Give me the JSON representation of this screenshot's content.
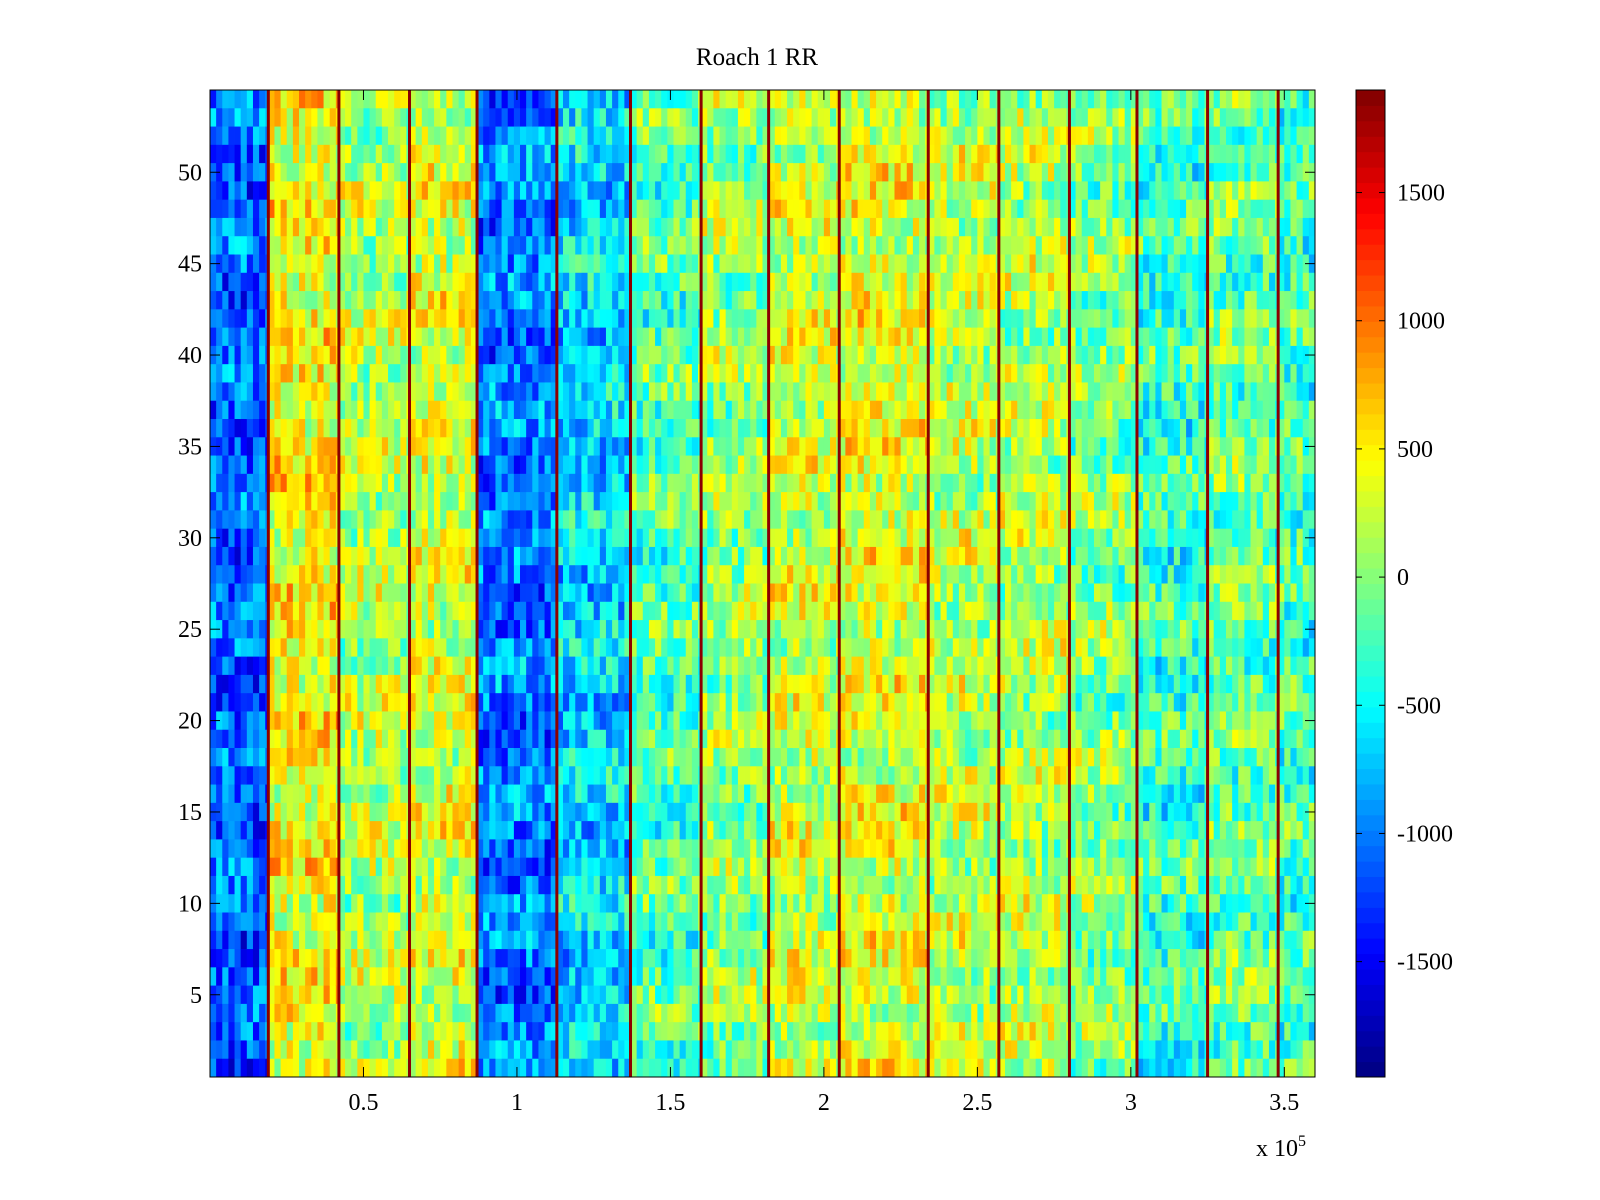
{
  "chart_data": {
    "type": "heatmap",
    "title": "Roach 1 RR",
    "xlabel": "",
    "ylabel": "",
    "x_multiplier_text": "x 10",
    "x_multiplier_exponent": "5",
    "xlim": [
      0,
      360000
    ],
    "ylim": [
      0.5,
      54.5
    ],
    "x_ticks": [
      {
        "value": 50000,
        "label": "0.5"
      },
      {
        "value": 100000,
        "label": "1"
      },
      {
        "value": 150000,
        "label": "1.5"
      },
      {
        "value": 200000,
        "label": "2"
      },
      {
        "value": 250000,
        "label": "2.5"
      },
      {
        "value": 300000,
        "label": "3"
      },
      {
        "value": 350000,
        "label": "3.5"
      }
    ],
    "y_ticks": [
      {
        "value": 5,
        "label": "5"
      },
      {
        "value": 10,
        "label": "10"
      },
      {
        "value": 15,
        "label": "15"
      },
      {
        "value": 20,
        "label": "20"
      },
      {
        "value": 25,
        "label": "25"
      },
      {
        "value": 30,
        "label": "30"
      },
      {
        "value": 35,
        "label": "35"
      },
      {
        "value": 40,
        "label": "40"
      },
      {
        "value": 45,
        "label": "45"
      },
      {
        "value": 50,
        "label": "50"
      }
    ],
    "rows": 54,
    "colormap": "jet",
    "colorbar": {
      "clim": [
        -1950,
        1900
      ],
      "ticks": [
        {
          "value": -1500,
          "label": "-1500"
        },
        {
          "value": -1000,
          "label": "-1000"
        },
        {
          "value": -500,
          "label": "-500"
        },
        {
          "value": 0,
          "label": "0"
        },
        {
          "value": 500,
          "label": "500"
        },
        {
          "value": 1000,
          "label": "1000"
        },
        {
          "value": 1500,
          "label": "1500"
        }
      ]
    },
    "segments": [
      {
        "x_start": 0,
        "x_end": 19000,
        "value": -1100
      },
      {
        "x_start": 19000,
        "x_end": 42000,
        "value": 450
      },
      {
        "x_start": 42000,
        "x_end": 65000,
        "value": 150
      },
      {
        "x_start": 65000,
        "x_end": 87000,
        "value": 300
      },
      {
        "x_start": 87000,
        "x_end": 113000,
        "value": -1000
      },
      {
        "x_start": 113000,
        "x_end": 137000,
        "value": -650
      },
      {
        "x_start": 137000,
        "x_end": 160000,
        "value": -200
      },
      {
        "x_start": 160000,
        "x_end": 182000,
        "value": 50
      },
      {
        "x_start": 182000,
        "x_end": 205000,
        "value": 250
      },
      {
        "x_start": 205000,
        "x_end": 234000,
        "value": 350
      },
      {
        "x_start": 234000,
        "x_end": 257000,
        "value": 200
      },
      {
        "x_start": 257000,
        "x_end": 280000,
        "value": 150
      },
      {
        "x_start": 280000,
        "x_end": 302000,
        "value": 0
      },
      {
        "x_start": 302000,
        "x_end": 325000,
        "value": -300
      },
      {
        "x_start": 325000,
        "x_end": 348000,
        "value": -100
      },
      {
        "x_start": 348000,
        "x_end": 360000,
        "value": -250
      }
    ],
    "spike_lines_x": [
      19000,
      42000,
      65000,
      87000,
      113000,
      137000,
      160000,
      182000,
      205000,
      234000,
      257000,
      280000,
      302000,
      325000,
      348000
    ]
  }
}
